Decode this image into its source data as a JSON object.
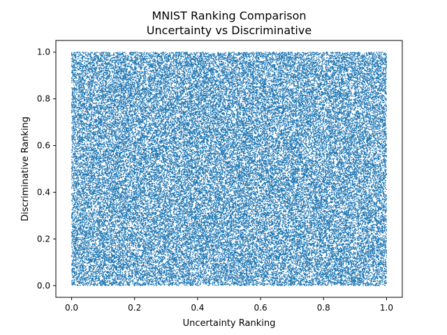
{
  "chart_data": {
    "type": "scatter",
    "title": "MNIST Ranking Comparison",
    "subtitle": "Uncertainty vs Discriminative",
    "xlabel": "Uncertainty Ranking",
    "ylabel": "Discriminative Ranking",
    "xlim": [
      -0.05,
      1.05
    ],
    "ylim": [
      -0.05,
      1.05
    ],
    "xticks": [
      0.0,
      0.2,
      0.4,
      0.6,
      0.8,
      1.0
    ],
    "yticks": [
      0.0,
      0.2,
      0.4,
      0.6,
      0.8,
      1.0
    ],
    "xtick_labels": [
      "0.0",
      "0.2",
      "0.4",
      "0.6",
      "0.8",
      "1.0"
    ],
    "ytick_labels": [
      "0.0",
      "0.2",
      "0.4",
      "0.6",
      "0.8",
      "1.0"
    ],
    "series": [
      {
        "color": "#1f77b4",
        "distribution": "uniform over [0, 1] x [0, 1]",
        "approx_point_count": 60000
      }
    ],
    "grid": false,
    "legend": false
  }
}
